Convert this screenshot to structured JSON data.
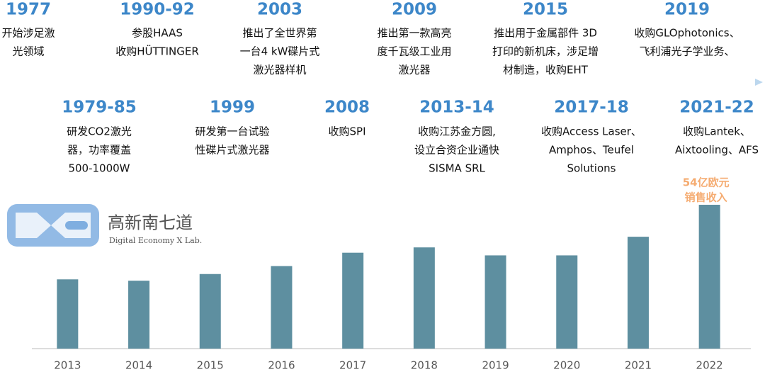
{
  "timeline": {
    "top": [
      {
        "year": "1977",
        "lines": [
          "开始涉足激",
          "光领域"
        ]
      },
      {
        "year": "1990-92",
        "lines": [
          "参股HAAS",
          "收购HÜTTINGER"
        ]
      },
      {
        "year": "2003",
        "lines": [
          "推出了全世界第",
          "一台4 kW碟片式",
          "激光器样机"
        ]
      },
      {
        "year": "2009",
        "lines": [
          "推出第一款高亮",
          "度千瓦级工业用",
          "激光器"
        ]
      },
      {
        "year": "2015",
        "lines": [
          "推出用于金属部件 3D",
          "打印的新机床，涉足增",
          "材制造，收购EHT"
        ]
      },
      {
        "year": "2019",
        "lines": [
          "收购GLOphotonics、",
          "飞利浦光子学业务、"
        ]
      }
    ],
    "bottom": [
      {
        "year": "1979-85",
        "lines": [
          "研发CO2激光",
          "器，功率覆盖",
          "500-1000W"
        ]
      },
      {
        "year": "1999",
        "lines": [
          "研发第一台试验",
          "性碟片式激光器"
        ]
      },
      {
        "year": "2008",
        "lines": [
          "收购SPI"
        ]
      },
      {
        "year": "2013-14",
        "lines": [
          "收购江苏金方圆,",
          "设立合资企业通快",
          "SISMA SRL"
        ]
      },
      {
        "year": "2017-18",
        "lines": [
          "收购Access Laser、",
          "Amphos、Teufel",
          "Solutions"
        ]
      },
      {
        "year": "2021-22",
        "lines": [
          "收购Lantek、",
          "Aixtooling、AFS"
        ]
      }
    ]
  },
  "logo": {
    "name": "高新南七道",
    "subtitle": "Digital Economy X Lab."
  },
  "chart_data": {
    "type": "bar",
    "categories": [
      "2013",
      "2014",
      "2015",
      "2016",
      "2017",
      "2018",
      "2019",
      "2020",
      "2021",
      "2022"
    ],
    "values": [
      26,
      25.5,
      28,
      31,
      36,
      38,
      35,
      35,
      42,
      54
    ],
    "value_labels": [
      null,
      null,
      null,
      null,
      null,
      null,
      null,
      null,
      null,
      "54亿欧元"
    ],
    "annotation": "销售收入",
    "color": "#5e8fa0",
    "ylim": [
      0,
      54
    ]
  }
}
